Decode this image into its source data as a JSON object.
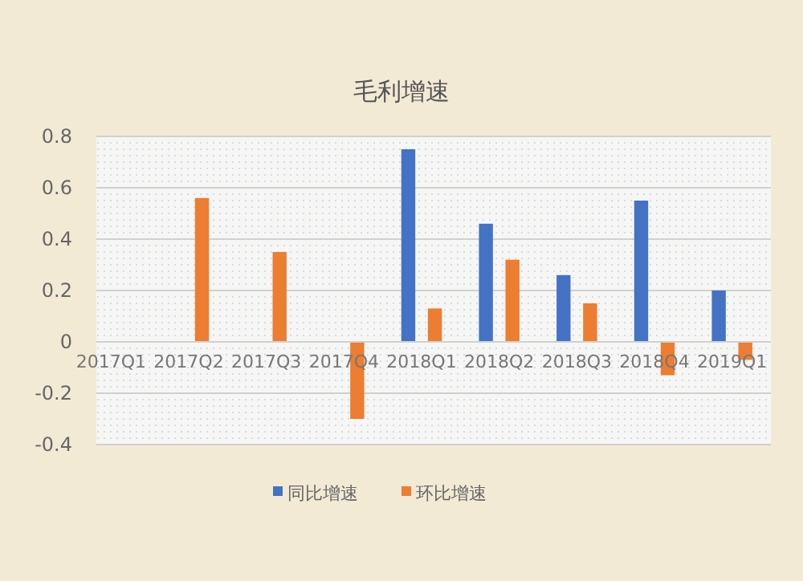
{
  "chart_data": {
    "type": "bar",
    "title": "毛利增速",
    "categories": [
      "2017Q1",
      "2017Q2",
      "2017Q3",
      "2017Q4",
      "2018Q1",
      "2018Q2",
      "2018Q3",
      "2018Q4",
      "2019Q1"
    ],
    "series": [
      {
        "name": "同比增速",
        "color": "#4472c4",
        "values": [
          null,
          null,
          null,
          null,
          0.75,
          0.46,
          0.26,
          0.55,
          0.2
        ]
      },
      {
        "name": "环比增速",
        "color": "#ed7d31",
        "values": [
          null,
          0.56,
          0.35,
          -0.3,
          0.13,
          0.32,
          0.15,
          -0.13,
          -0.07
        ]
      }
    ],
    "ylim": [
      -0.4,
      0.8
    ],
    "yticks": [
      -0.4,
      -0.2,
      0,
      0.2,
      0.4,
      0.6,
      0.8
    ],
    "grid": "y",
    "legend": "bottom"
  }
}
